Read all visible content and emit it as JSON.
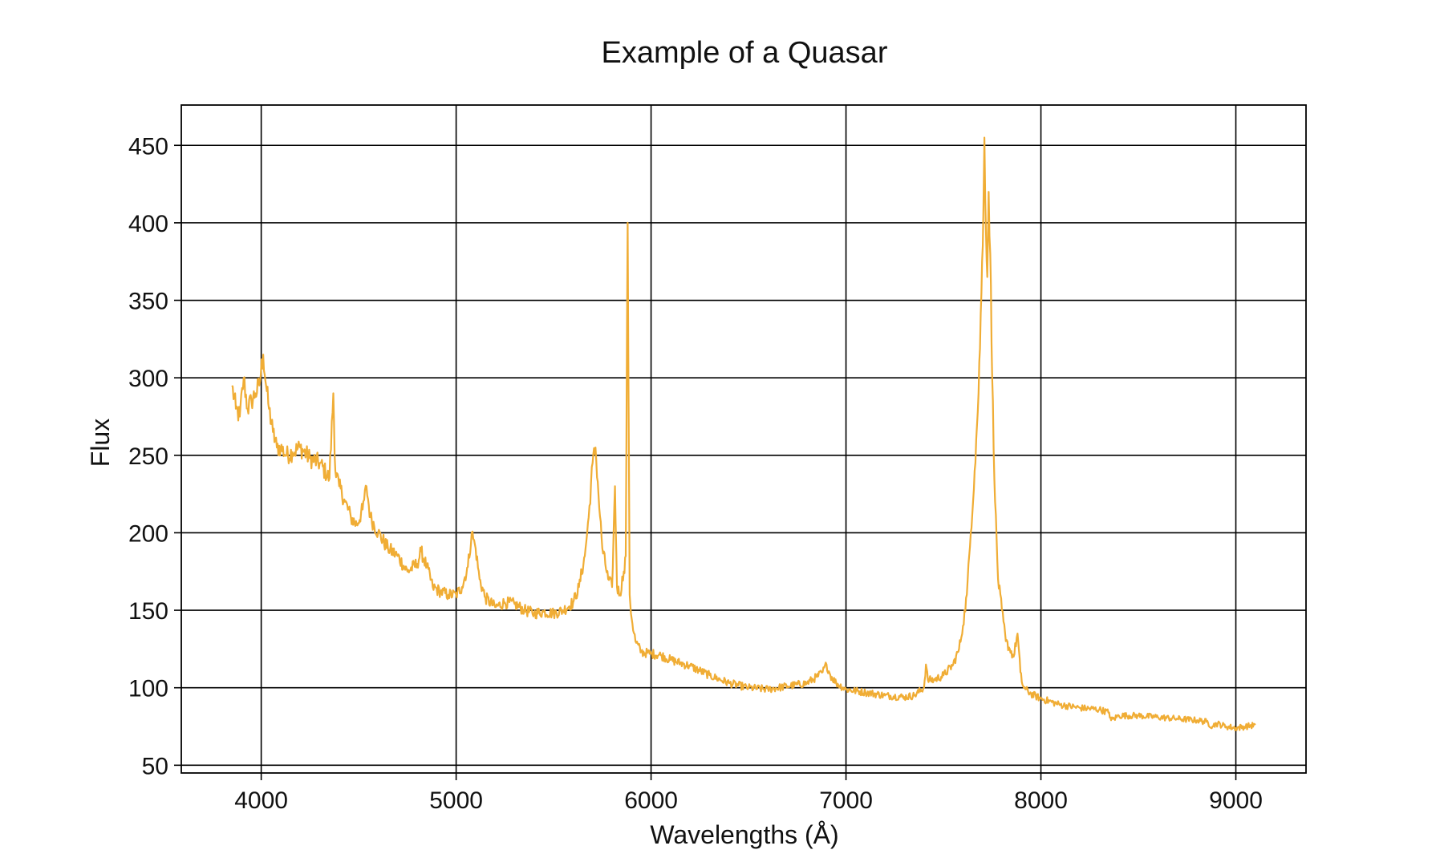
{
  "chart_data": {
    "type": "line",
    "title": "Example of a Quasar",
    "xlabel": "Wavelengths (Å)",
    "ylabel": "Flux",
    "xlim": [
      3590,
      9360
    ],
    "ylim": [
      45,
      476
    ],
    "xticks": [
      4000,
      5000,
      6000,
      7000,
      8000,
      9000
    ],
    "yticks": [
      50,
      100,
      150,
      200,
      250,
      300,
      350,
      400,
      450
    ],
    "grid": true,
    "series": [
      {
        "color": "#f0ad35",
        "x": [
          3850,
          3870,
          3890,
          3910,
          3930,
          3950,
          3970,
          3990,
          4010,
          4025,
          4040,
          4060,
          4080,
          4100,
          4130,
          4160,
          4200,
          4250,
          4300,
          4350,
          4370,
          4380,
          4400,
          4430,
          4460,
          4490,
          4520,
          4540,
          4560,
          4600,
          4650,
          4700,
          4750,
          4800,
          4820,
          4850,
          4880,
          4920,
          4960,
          5000,
          5030,
          5060,
          5080,
          5100,
          5120,
          5150,
          5200,
          5250,
          5300,
          5350,
          5400,
          5450,
          5500,
          5550,
          5600,
          5630,
          5660,
          5680,
          5700,
          5715,
          5730,
          5750,
          5780,
          5800,
          5815,
          5825,
          5840,
          5860,
          5870,
          5880,
          5890,
          5900,
          5920,
          5950,
          6000,
          6050,
          6100,
          6150,
          6200,
          6300,
          6400,
          6500,
          6600,
          6700,
          6800,
          6850,
          6880,
          6900,
          6920,
          6950,
          7000,
          7100,
          7200,
          7300,
          7350,
          7400,
          7410,
          7420,
          7450,
          7500,
          7550,
          7580,
          7600,
          7620,
          7640,
          7660,
          7680,
          7695,
          7705,
          7710,
          7718,
          7725,
          7732,
          7740,
          7750,
          7765,
          7780,
          7800,
          7820,
          7840,
          7860,
          7880,
          7895,
          7905,
          7920,
          7950,
          8000,
          8100,
          8200,
          8300,
          8350,
          8360,
          8400,
          8500,
          8600,
          8700,
          8800,
          8850,
          8880,
          8900,
          8950,
          9000,
          9050,
          9100
        ],
        "y": [
          295,
          280,
          275,
          300,
          280,
          285,
          290,
          295,
          315,
          295,
          280,
          265,
          255,
          255,
          250,
          252,
          255,
          248,
          245,
          235,
          290,
          240,
          230,
          220,
          210,
          205,
          215,
          230,
          210,
          200,
          190,
          185,
          175,
          180,
          188,
          178,
          165,
          162,
          160,
          160,
          165,
          178,
          200,
          190,
          170,
          158,
          152,
          155,
          154,
          150,
          148,
          149,
          148,
          150,
          155,
          165,
          185,
          210,
          245,
          255,
          225,
          190,
          170,
          165,
          230,
          165,
          160,
          175,
          185,
          400,
          160,
          145,
          130,
          123,
          122,
          121,
          118,
          116,
          114,
          108,
          103,
          100,
          99,
          101,
          103,
          107,
          110,
          115,
          108,
          103,
          99,
          97,
          95,
          94,
          95,
          100,
          115,
          105,
          105,
          108,
          115,
          125,
          140,
          160,
          200,
          240,
          290,
          355,
          410,
          455,
          395,
          365,
          420,
          380,
          300,
          220,
          170,
          150,
          130,
          125,
          120,
          135,
          110,
          102,
          99,
          96,
          93,
          89,
          87,
          86,
          84,
          79,
          82,
          82,
          81,
          80,
          79,
          78,
          75,
          77,
          75,
          74,
          75,
          76
        ]
      }
    ]
  }
}
